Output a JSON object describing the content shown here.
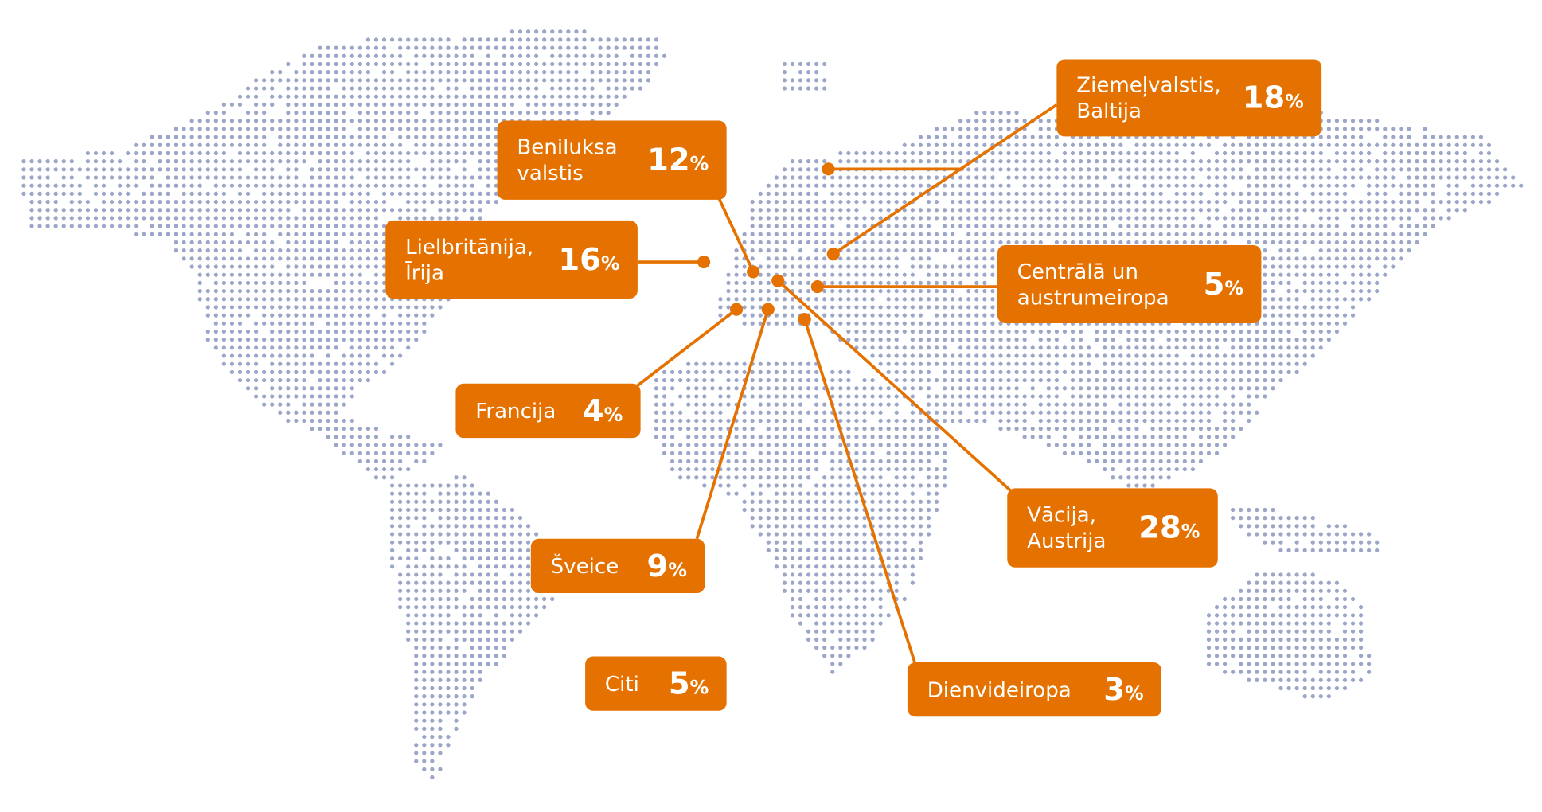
{
  "colors": {
    "accent": "#e57200",
    "dots": "#9ba6c9"
  },
  "percent_sign": "%",
  "regions": [
    {
      "id": "benelux",
      "label": "Beniluksa\nvalstis",
      "value": "12"
    },
    {
      "id": "uk-ireland",
      "label": "Lielbritānija,\nĪrija",
      "value": "16"
    },
    {
      "id": "nordics-baltics",
      "label": "Ziemeļvalstis,\nBaltija",
      "value": "18"
    },
    {
      "id": "central-eastern-europe",
      "label": "Centrālā un\naustrumeiropa",
      "value": "5"
    },
    {
      "id": "france",
      "label": "Francija",
      "value": "4"
    },
    {
      "id": "switzerland",
      "label": "Šveice",
      "value": "9"
    },
    {
      "id": "germany-austria",
      "label": "Vācija,\nAustrija",
      "value": "28"
    },
    {
      "id": "southwest-europe",
      "label": "Dienvideiropa",
      "value": "3"
    },
    {
      "id": "other",
      "label": "Citi",
      "value": "5"
    }
  ]
}
